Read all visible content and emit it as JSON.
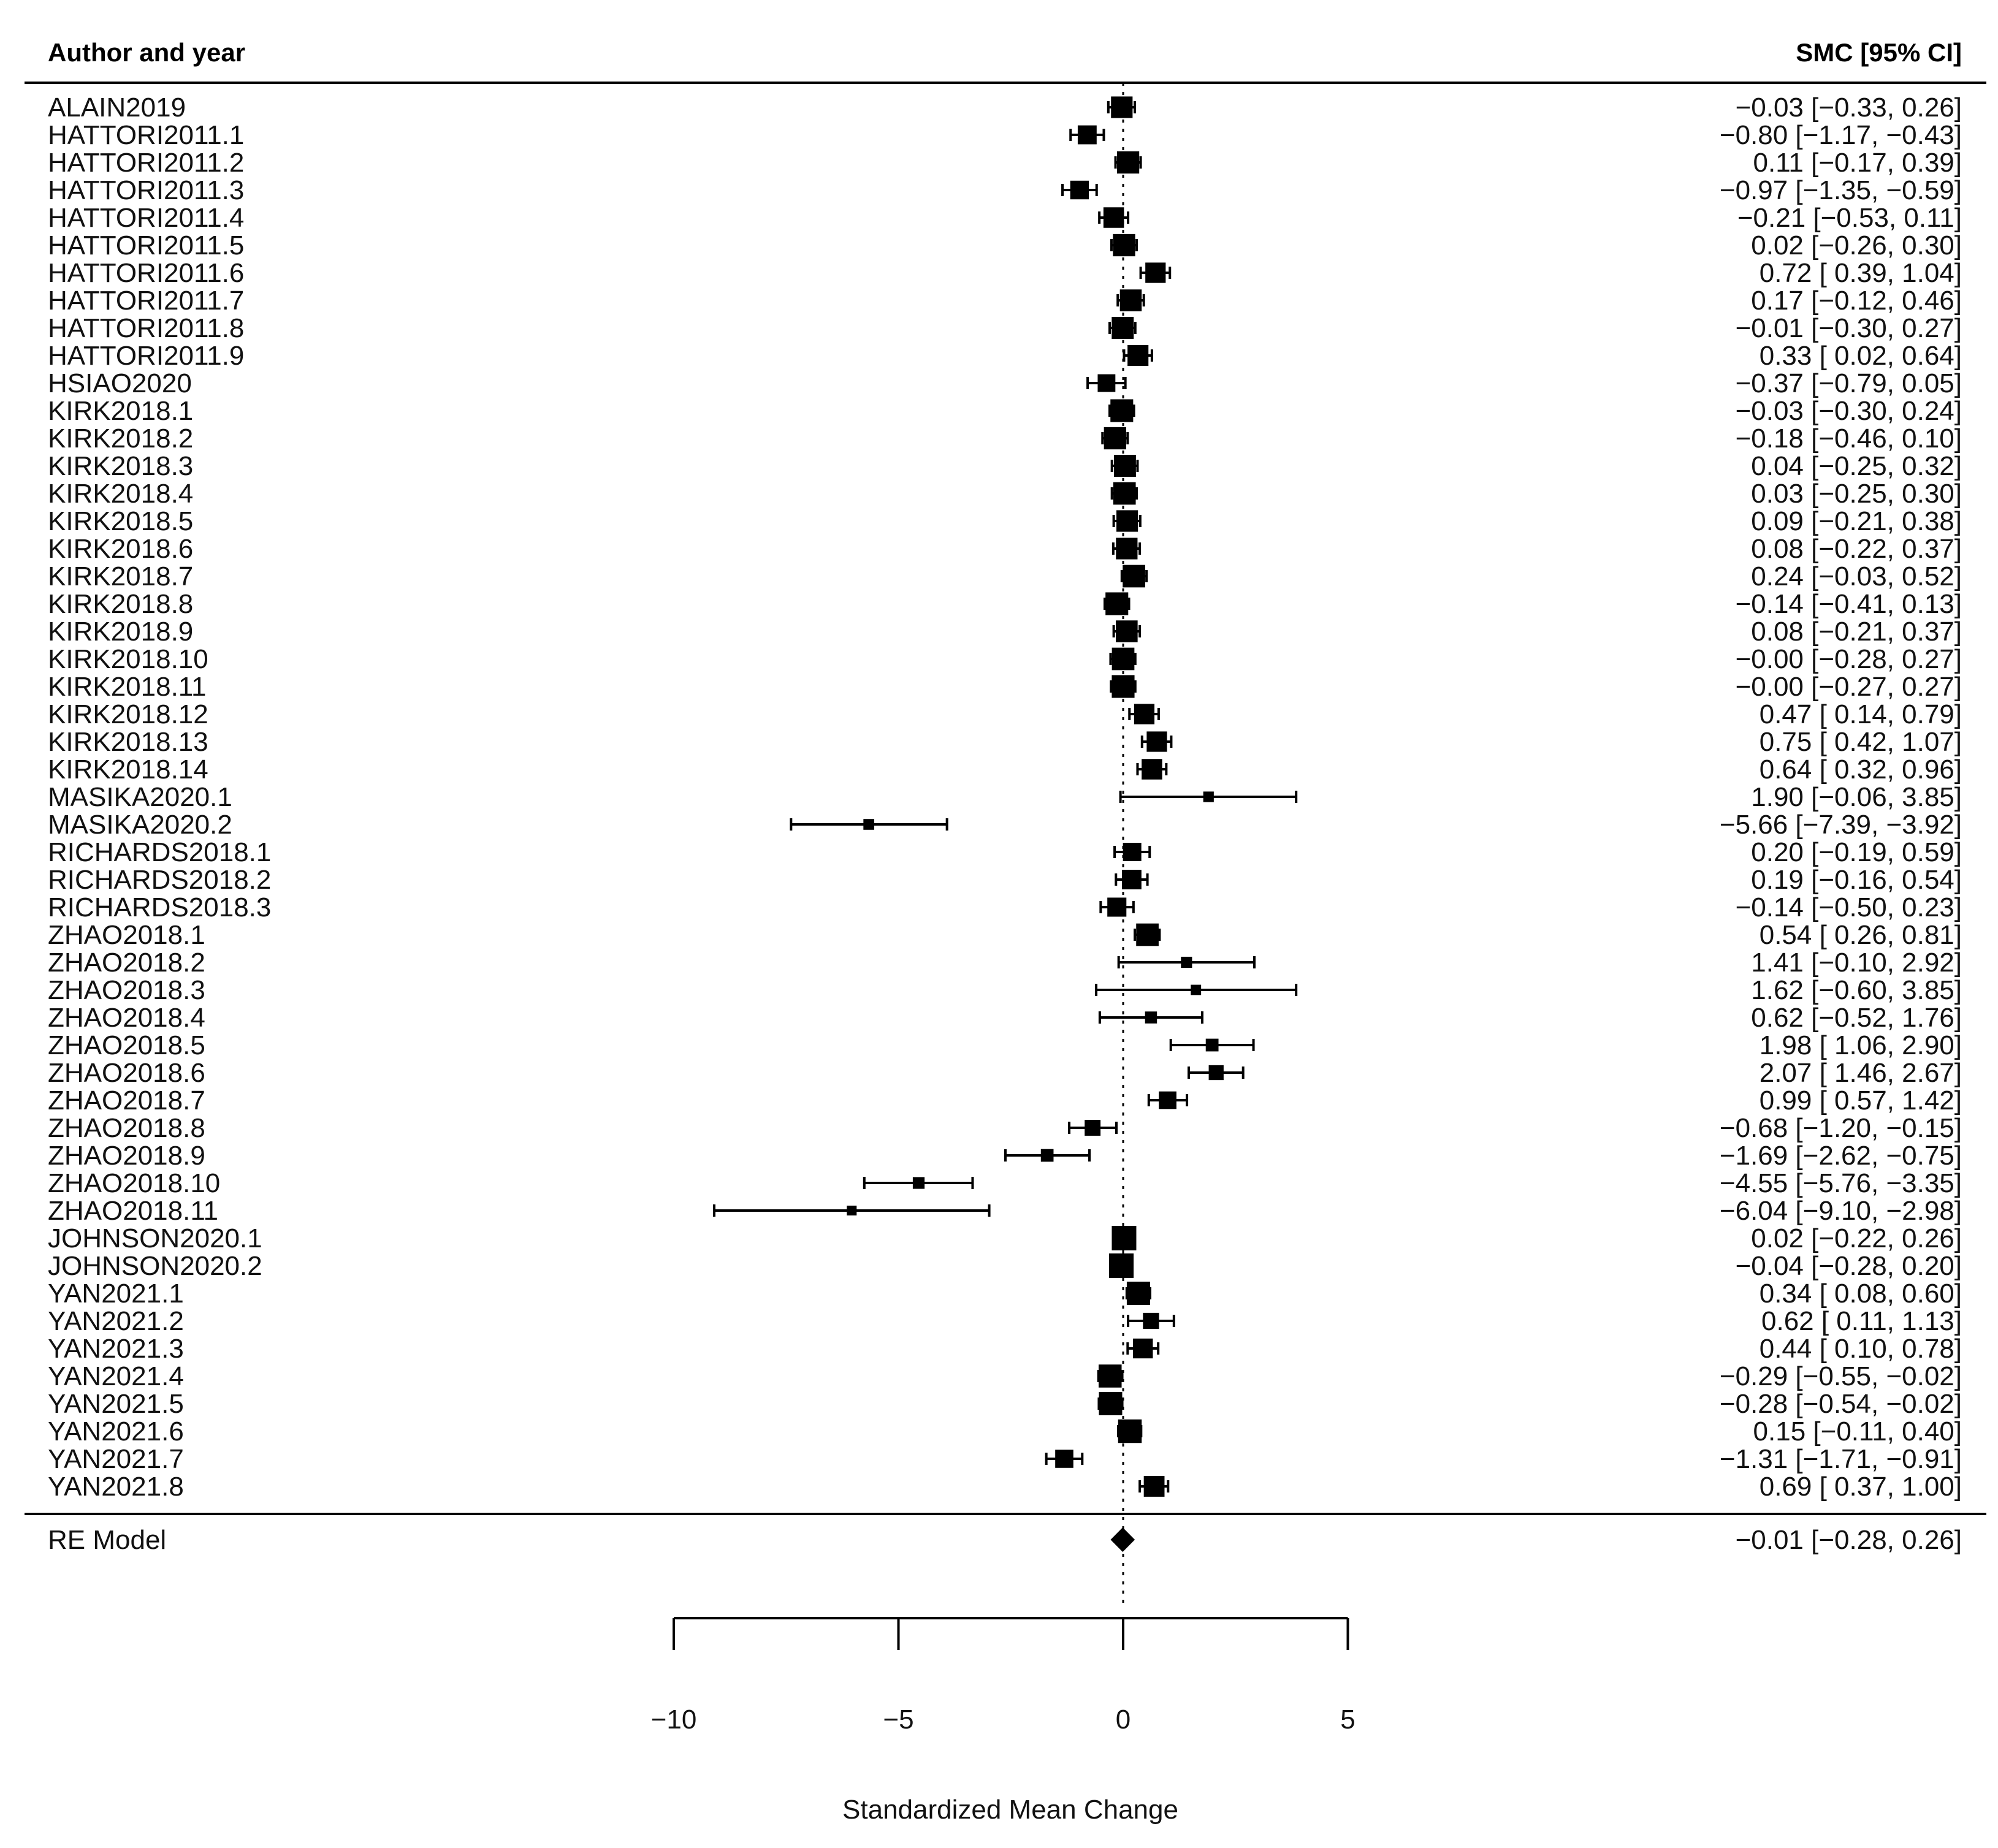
{
  "chart_data": {
    "type": "forest",
    "header_left": "Author and year",
    "header_right": "SMC [95% CI]",
    "xlabel": "Standardized Mean Change",
    "xlim": [
      -10,
      5
    ],
    "xticks": [
      -10,
      -5,
      0,
      5
    ],
    "xtick_labels": [
      "−10",
      "−5",
      "0",
      "5"
    ],
    "reference_line": 0,
    "studies": [
      {
        "label": "ALAIN2019",
        "est": -0.03,
        "lo": -0.33,
        "hi": 0.26,
        "text": "−0.03 [−0.33,  0.26]"
      },
      {
        "label": "HATTORI2011.1",
        "est": -0.8,
        "lo": -1.17,
        "hi": -0.43,
        "text": "−0.80 [−1.17, −0.43]"
      },
      {
        "label": "HATTORI2011.2",
        "est": 0.11,
        "lo": -0.17,
        "hi": 0.39,
        "text": "0.11 [−0.17,  0.39]"
      },
      {
        "label": "HATTORI2011.3",
        "est": -0.97,
        "lo": -1.35,
        "hi": -0.59,
        "text": "−0.97 [−1.35, −0.59]"
      },
      {
        "label": "HATTORI2011.4",
        "est": -0.21,
        "lo": -0.53,
        "hi": 0.11,
        "text": "−0.21 [−0.53,  0.11]"
      },
      {
        "label": "HATTORI2011.5",
        "est": 0.02,
        "lo": -0.26,
        "hi": 0.3,
        "text": "0.02 [−0.26,  0.30]"
      },
      {
        "label": "HATTORI2011.6",
        "est": 0.72,
        "lo": 0.39,
        "hi": 1.04,
        "text": "0.72 [ 0.39,  1.04]"
      },
      {
        "label": "HATTORI2011.7",
        "est": 0.17,
        "lo": -0.12,
        "hi": 0.46,
        "text": "0.17 [−0.12,  0.46]"
      },
      {
        "label": "HATTORI2011.8",
        "est": -0.01,
        "lo": -0.3,
        "hi": 0.27,
        "text": "−0.01 [−0.30,  0.27]"
      },
      {
        "label": "HATTORI2011.9",
        "est": 0.33,
        "lo": 0.02,
        "hi": 0.64,
        "text": "0.33 [ 0.02,  0.64]"
      },
      {
        "label": "HSIAO2020",
        "est": -0.37,
        "lo": -0.79,
        "hi": 0.05,
        "text": "−0.37 [−0.79,  0.05]"
      },
      {
        "label": "KIRK2018.1",
        "est": -0.03,
        "lo": -0.3,
        "hi": 0.24,
        "text": "−0.03 [−0.30,  0.24]"
      },
      {
        "label": "KIRK2018.2",
        "est": -0.18,
        "lo": -0.46,
        "hi": 0.1,
        "text": "−0.18 [−0.46,  0.10]"
      },
      {
        "label": "KIRK2018.3",
        "est": 0.04,
        "lo": -0.25,
        "hi": 0.32,
        "text": "0.04 [−0.25,  0.32]"
      },
      {
        "label": "KIRK2018.4",
        "est": 0.03,
        "lo": -0.25,
        "hi": 0.3,
        "text": "0.03 [−0.25,  0.30]"
      },
      {
        "label": "KIRK2018.5",
        "est": 0.09,
        "lo": -0.21,
        "hi": 0.38,
        "text": "0.09 [−0.21,  0.38]"
      },
      {
        "label": "KIRK2018.6",
        "est": 0.08,
        "lo": -0.22,
        "hi": 0.37,
        "text": "0.08 [−0.22,  0.37]"
      },
      {
        "label": "KIRK2018.7",
        "est": 0.24,
        "lo": -0.03,
        "hi": 0.52,
        "text": "0.24 [−0.03,  0.52]"
      },
      {
        "label": "KIRK2018.8",
        "est": -0.14,
        "lo": -0.41,
        "hi": 0.13,
        "text": "−0.14 [−0.41,  0.13]"
      },
      {
        "label": "KIRK2018.9",
        "est": 0.08,
        "lo": -0.21,
        "hi": 0.37,
        "text": "0.08 [−0.21,  0.37]"
      },
      {
        "label": "KIRK2018.10",
        "est": -0.0,
        "lo": -0.28,
        "hi": 0.27,
        "text": "−0.00 [−0.28,  0.27]"
      },
      {
        "label": "KIRK2018.11",
        "est": -0.0,
        "lo": -0.27,
        "hi": 0.27,
        "text": "−0.00 [−0.27,  0.27]"
      },
      {
        "label": "KIRK2018.12",
        "est": 0.47,
        "lo": 0.14,
        "hi": 0.79,
        "text": "0.47 [ 0.14,  0.79]"
      },
      {
        "label": "KIRK2018.13",
        "est": 0.75,
        "lo": 0.42,
        "hi": 1.07,
        "text": "0.75 [ 0.42,  1.07]"
      },
      {
        "label": "KIRK2018.14",
        "est": 0.64,
        "lo": 0.32,
        "hi": 0.96,
        "text": "0.64 [ 0.32,  0.96]"
      },
      {
        "label": "MASIKA2020.1",
        "est": 1.9,
        "lo": -0.06,
        "hi": 3.85,
        "text": "1.90 [−0.06,  3.85]"
      },
      {
        "label": "MASIKA2020.2",
        "est": -5.66,
        "lo": -7.39,
        "hi": -3.92,
        "text": "−5.66 [−7.39, −3.92]"
      },
      {
        "label": "RICHARDS2018.1",
        "est": 0.2,
        "lo": -0.19,
        "hi": 0.59,
        "text": "0.20 [−0.19,  0.59]"
      },
      {
        "label": "RICHARDS2018.2",
        "est": 0.19,
        "lo": -0.16,
        "hi": 0.54,
        "text": "0.19 [−0.16,  0.54]"
      },
      {
        "label": "RICHARDS2018.3",
        "est": -0.14,
        "lo": -0.5,
        "hi": 0.23,
        "text": "−0.14 [−0.50,  0.23]"
      },
      {
        "label": "ZHAO2018.1",
        "est": 0.54,
        "lo": 0.26,
        "hi": 0.81,
        "text": "0.54 [ 0.26,  0.81]"
      },
      {
        "label": "ZHAO2018.2",
        "est": 1.41,
        "lo": -0.1,
        "hi": 2.92,
        "text": "1.41 [−0.10,  2.92]"
      },
      {
        "label": "ZHAO2018.3",
        "est": 1.62,
        "lo": -0.6,
        "hi": 3.85,
        "text": "1.62 [−0.60,  3.85]"
      },
      {
        "label": "ZHAO2018.4",
        "est": 0.62,
        "lo": -0.52,
        "hi": 1.76,
        "text": "0.62 [−0.52,  1.76]"
      },
      {
        "label": "ZHAO2018.5",
        "est": 1.98,
        "lo": 1.06,
        "hi": 2.9,
        "text": "1.98 [ 1.06,  2.90]"
      },
      {
        "label": "ZHAO2018.6",
        "est": 2.07,
        "lo": 1.46,
        "hi": 2.67,
        "text": "2.07 [ 1.46,  2.67]"
      },
      {
        "label": "ZHAO2018.7",
        "est": 0.99,
        "lo": 0.57,
        "hi": 1.42,
        "text": "0.99 [ 0.57,  1.42]"
      },
      {
        "label": "ZHAO2018.8",
        "est": -0.68,
        "lo": -1.2,
        "hi": -0.15,
        "text": "−0.68 [−1.20, −0.15]"
      },
      {
        "label": "ZHAO2018.9",
        "est": -1.69,
        "lo": -2.62,
        "hi": -0.75,
        "text": "−1.69 [−2.62, −0.75]"
      },
      {
        "label": "ZHAO2018.10",
        "est": -4.55,
        "lo": -5.76,
        "hi": -3.35,
        "text": "−4.55 [−5.76, −3.35]"
      },
      {
        "label": "ZHAO2018.11",
        "est": -6.04,
        "lo": -9.1,
        "hi": -2.98,
        "text": "−6.04 [−9.10, −2.98]"
      },
      {
        "label": "JOHNSON2020.1",
        "est": 0.02,
        "lo": -0.22,
        "hi": 0.26,
        "text": "0.02 [−0.22,  0.26]"
      },
      {
        "label": "JOHNSON2020.2",
        "est": -0.04,
        "lo": -0.28,
        "hi": 0.2,
        "text": "−0.04 [−0.28,  0.20]"
      },
      {
        "label": "YAN2021.1",
        "est": 0.34,
        "lo": 0.08,
        "hi": 0.6,
        "text": "0.34 [ 0.08,  0.60]"
      },
      {
        "label": "YAN2021.2",
        "est": 0.62,
        "lo": 0.11,
        "hi": 1.13,
        "text": "0.62 [ 0.11,  1.13]"
      },
      {
        "label": "YAN2021.3",
        "est": 0.44,
        "lo": 0.1,
        "hi": 0.78,
        "text": "0.44 [ 0.10,  0.78]"
      },
      {
        "label": "YAN2021.4",
        "est": -0.29,
        "lo": -0.55,
        "hi": -0.02,
        "text": "−0.29 [−0.55, −0.02]"
      },
      {
        "label": "YAN2021.5",
        "est": -0.28,
        "lo": -0.54,
        "hi": -0.02,
        "text": "−0.28 [−0.54, −0.02]"
      },
      {
        "label": "YAN2021.6",
        "est": 0.15,
        "lo": -0.11,
        "hi": 0.4,
        "text": "0.15 [−0.11,  0.40]"
      },
      {
        "label": "YAN2021.7",
        "est": -1.31,
        "lo": -1.71,
        "hi": -0.91,
        "text": "−1.31 [−1.71, −0.91]"
      },
      {
        "label": "YAN2021.8",
        "est": 0.69,
        "lo": 0.37,
        "hi": 1.0,
        "text": "0.69 [ 0.37,  1.00]"
      }
    ],
    "summary": {
      "label": "RE Model",
      "est": -0.01,
      "lo": -0.28,
      "hi": 0.26,
      "text": "−0.01 [−0.28,  0.26]"
    }
  }
}
